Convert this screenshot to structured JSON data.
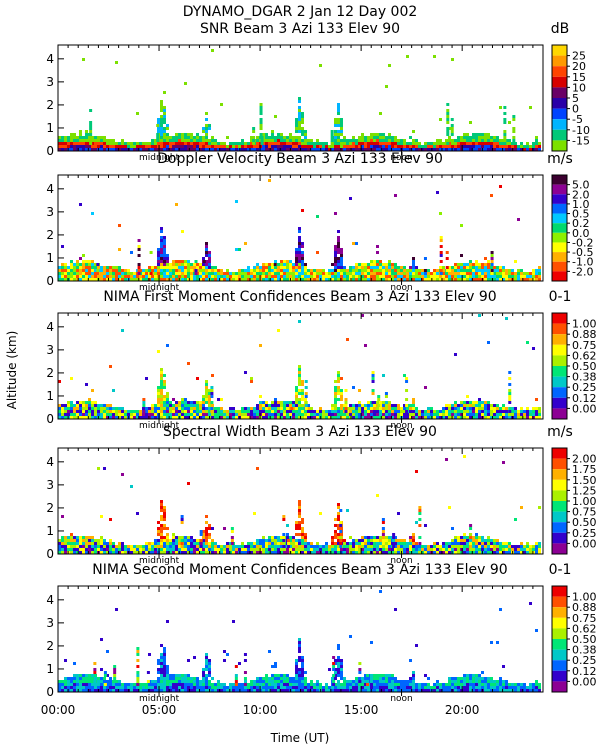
{
  "header": {
    "title": "DYNAMO_DGAR    2 Jan 12 Day 002"
  },
  "axes": {
    "ylabel": "Altitude (km)",
    "xlabel": "Time (UT)",
    "x_range": [
      0,
      24
    ],
    "y_range": [
      0,
      4.6
    ],
    "y_ticks": [
      "0",
      "1",
      "2",
      "3",
      "4"
    ],
    "x_ticks": [
      {
        "label": "00:00",
        "hour": 0
      },
      {
        "label": "05:00",
        "hour": 5
      },
      {
        "label": "10:00",
        "hour": 10
      },
      {
        "label": "15:00",
        "hour": 15
      },
      {
        "label": "20:00",
        "hour": 20
      }
    ],
    "markers": [
      {
        "label": "midnight",
        "hour": 5.0
      },
      {
        "label": "noon",
        "hour": 17.0
      }
    ]
  },
  "chart_data": [
    {
      "type": "heatmap",
      "title": "SNR Beam 3 Azi 133 Elev 90",
      "unit": "dB",
      "colorbar": {
        "labels": [
          "25",
          "20",
          "15",
          "10",
          "5",
          "0",
          "-5",
          "-10",
          "-15"
        ],
        "colors": [
          "#ffd700",
          "#ff9900",
          "#ff4400",
          "#d70000",
          "#6a0066",
          "#2a00a8",
          "#0044ff",
          "#00b4ff",
          "#00c878",
          "#7ce000"
        ]
      },
      "profile": {
        "base_km": 0.55,
        "plumes": [
          [
            5.1,
            2.6
          ],
          [
            7.3,
            1.9
          ],
          [
            11.9,
            2.5
          ],
          [
            13.8,
            2.2
          ],
          [
            17.5,
            1.0
          ]
        ]
      }
    },
    {
      "type": "heatmap",
      "title": "Doppler Velocity Beam 3 Azi 133 Elev 90",
      "unit": "m/s",
      "colorbar": {
        "labels": [
          "5.0",
          "2.0",
          "1.0",
          "0.5",
          "0.2",
          "0.0",
          "-0.2",
          "-0.5",
          "-1.0",
          "-2.0"
        ],
        "colors": [
          "#3c0030",
          "#8c0094",
          "#3300cc",
          "#0066ff",
          "#00c8ff",
          "#00d96e",
          "#8cf000",
          "#ffff00",
          "#ffb000",
          "#ff5000",
          "#ee0000"
        ]
      },
      "profile": {
        "base_km": 0.65,
        "plumes": [
          [
            5.1,
            2.7
          ],
          [
            7.3,
            1.9
          ],
          [
            11.9,
            2.5
          ],
          [
            13.8,
            2.3
          ],
          [
            17.5,
            1.1
          ]
        ]
      }
    },
    {
      "type": "heatmap",
      "title": "NIMA First Moment Confidences Beam 3 Azi 133 Elev 90",
      "unit": "0-1",
      "colorbar": {
        "labels": [
          "1.00",
          "0.88",
          "0.75",
          "0.62",
          "0.50",
          "0.38",
          "0.25",
          "0.12",
          "0.00"
        ],
        "colors": [
          "#ee0000",
          "#ff5000",
          "#ffb000",
          "#ffff00",
          "#aaf000",
          "#00e676",
          "#00c8c8",
          "#0066ff",
          "#3300cc",
          "#8c0094"
        ]
      },
      "profile": {
        "base_km": 0.6,
        "plumes": [
          [
            5.1,
            2.6
          ],
          [
            7.3,
            1.9
          ],
          [
            11.9,
            2.5
          ],
          [
            13.8,
            2.2
          ],
          [
            17.5,
            1.0
          ]
        ]
      }
    },
    {
      "type": "heatmap",
      "title": "Spectral Width Beam 3 Azi 133 Elev 90",
      "unit": "m/s",
      "colorbar": {
        "labels": [
          "2.00",
          "1.75",
          "1.50",
          "1.25",
          "1.00",
          "0.75",
          "0.50",
          "0.25",
          "0.00"
        ],
        "colors": [
          "#ee0000",
          "#ff5000",
          "#ffb000",
          "#ffff00",
          "#aaf000",
          "#00e676",
          "#00c8c8",
          "#0066ff",
          "#3300cc",
          "#8c0094"
        ]
      },
      "profile": {
        "base_km": 0.6,
        "plumes": [
          [
            5.1,
            2.7
          ],
          [
            7.3,
            1.9
          ],
          [
            11.9,
            2.5
          ],
          [
            13.8,
            2.3
          ],
          [
            17.5,
            1.0
          ]
        ]
      }
    },
    {
      "type": "heatmap",
      "title": "NIMA Second Moment Confidences Beam 3 Azi 133 Elev 90",
      "unit": "0-1",
      "colorbar": {
        "labels": [
          "1.00",
          "0.88",
          "0.75",
          "0.62",
          "0.50",
          "0.38",
          "0.25",
          "0.12",
          "0.00"
        ],
        "colors": [
          "#ee0000",
          "#ff5000",
          "#ffb000",
          "#ffff00",
          "#aaf000",
          "#00e676",
          "#00c8c8",
          "#0066ff",
          "#3300cc",
          "#8c0094"
        ]
      },
      "profile": {
        "base_km": 0.55,
        "plumes": [
          [
            5.1,
            2.6
          ],
          [
            7.3,
            1.9
          ],
          [
            11.9,
            2.5
          ],
          [
            13.8,
            2.2
          ],
          [
            17.5,
            1.0
          ]
        ]
      }
    }
  ]
}
